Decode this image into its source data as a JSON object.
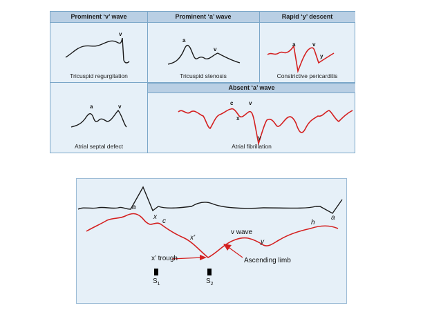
{
  "top_figure": {
    "headers": {
      "prominent_v": "Prominent ‘v’ wave",
      "prominent_a": "Prominent ‘a’ wave",
      "rapid_y": "Rapid ‘y’ descent",
      "absent_a": "Absent ‘a’ wave"
    },
    "captions": {
      "tricuspid_regurgitation": "Tricuspid regurgitation",
      "tricuspid_stenosis": "Tricuspid stenosis",
      "constrictive_pericarditis": "Constrictive pericarditis",
      "atrial_septal_defect": "Atrial septal defect",
      "atrial_fibrillation": "Atrial fibrillation"
    },
    "wave_labels": {
      "tr_v": "v",
      "ts_a": "a",
      "ts_v": "v",
      "cp_a": "a",
      "cp_v": "v",
      "cp_y": "y",
      "asd_a": "a",
      "asd_v": "v",
      "af_c": "c",
      "af_v": "v",
      "af_x": "x",
      "af_y": "y"
    },
    "colors": {
      "black_trace": "#1a1a1a",
      "red_trace": "#d42020",
      "panel_bg": "#e6f0f8",
      "header_bg": "#b9cfe4"
    }
  },
  "bottom_figure": {
    "labels": {
      "a_ecg": "a",
      "x": "x",
      "c": "c",
      "x_prime": "x’",
      "v_wave": "v wave",
      "y": "y",
      "h": "h",
      "a_end": "a",
      "x_trough": "x’ trough",
      "ascending_limb": "Ascending limb",
      "s1": "S",
      "s1_sub": "1",
      "s2": "S",
      "s2_sub": "2"
    }
  }
}
